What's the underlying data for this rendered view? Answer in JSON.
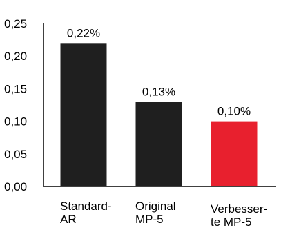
{
  "chart_data": {
    "type": "bar",
    "title": "",
    "xlabel": "",
    "ylabel": "",
    "ylim": [
      0,
      0.25
    ],
    "yticks": [
      "0,25",
      "0,20",
      "0,15",
      "0,10",
      "0,05",
      "0,00"
    ],
    "ytick_values": [
      0.25,
      0.2,
      0.15,
      0.1,
      0.05,
      0.0
    ],
    "grid": false,
    "categories": [
      [
        "Standard-",
        "AR"
      ],
      [
        "Original",
        "MP-5"
      ],
      [
        "Verbesser-",
        "te MP-5"
      ]
    ],
    "values": [
      0.22,
      0.13,
      0.1
    ],
    "data_labels": [
      "0,22%",
      "0,13%",
      "0,10%"
    ],
    "colors": [
      "#1f1f1f",
      "#1f1f1f",
      "#e8202e"
    ]
  }
}
